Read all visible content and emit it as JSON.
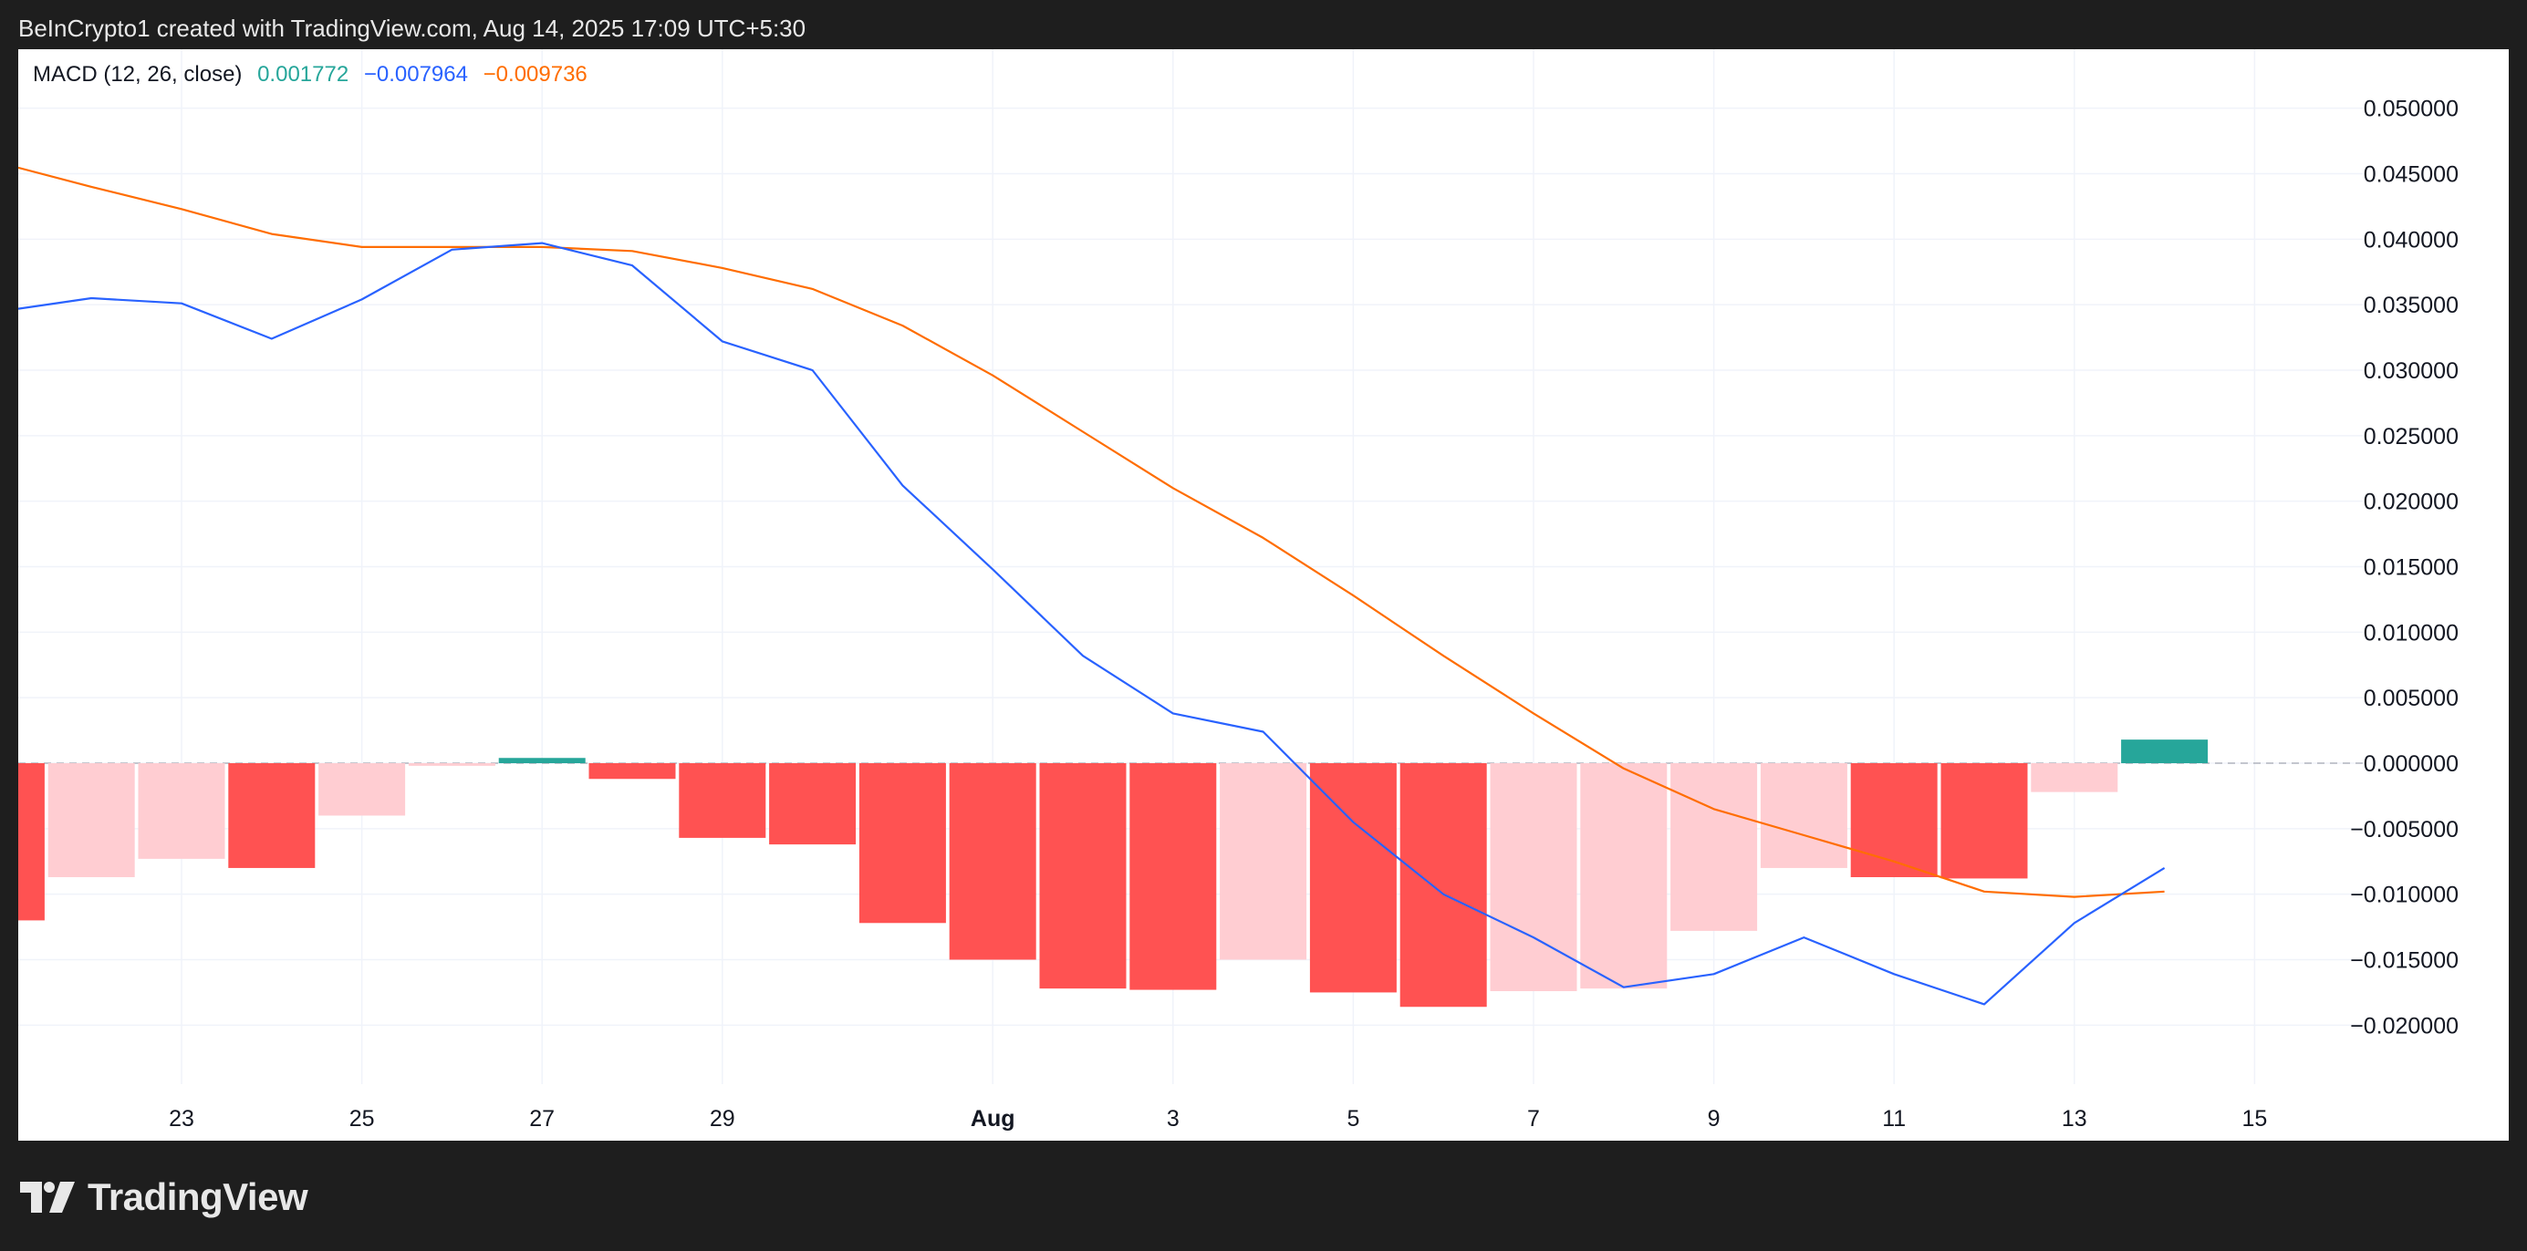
{
  "caption": "BeInCrypto1 created with TradingView.com, Aug 14, 2025 17:09 UTC+5:30",
  "brand": {
    "name": "TradingView"
  },
  "legend": {
    "indicator": "MACD (12, 26, close)",
    "histogram_value": "0.001772",
    "macd_value": "−0.007964",
    "signal_value": "−0.009736"
  },
  "colors": {
    "macd_line": "#2962ff",
    "signal_line": "#ff6d00",
    "hist_up_strong": "#26a69a",
    "hist_down_strong": "#ff5252",
    "hist_down_weak": "#ffcdd2"
  },
  "chart_data": {
    "type": "bar",
    "title": "",
    "x_ticks": [
      {
        "label": "23",
        "day": 23
      },
      {
        "label": "25",
        "day": 25
      },
      {
        "label": "27",
        "day": 27
      },
      {
        "label": "29",
        "day": 29
      },
      {
        "label": "Aug",
        "day": 32
      },
      {
        "label": "3",
        "day": 34
      },
      {
        "label": "5",
        "day": 36
      },
      {
        "label": "7",
        "day": 38
      },
      {
        "label": "9",
        "day": 40
      },
      {
        "label": "11",
        "day": 42
      },
      {
        "label": "13",
        "day": 44
      },
      {
        "label": "15",
        "day": 46
      }
    ],
    "y_ticks": [
      "0.050000",
      "0.045000",
      "0.040000",
      "0.035000",
      "0.030000",
      "0.025000",
      "0.020000",
      "0.015000",
      "0.010000",
      "0.005000",
      "0.000000",
      "−0.005000",
      "−0.010000",
      "−0.015000",
      "−0.020000"
    ],
    "ylim": [
      -0.0245,
      0.0545
    ],
    "dates": [
      "Jul 21",
      "Jul 22",
      "Jul 23",
      "Jul 24",
      "Jul 25",
      "Jul 26",
      "Jul 27",
      "Jul 28",
      "Jul 29",
      "Jul 30",
      "Jul 31",
      "Aug 1",
      "Aug 2",
      "Aug 3",
      "Aug 4",
      "Aug 5",
      "Aug 6",
      "Aug 7",
      "Aug 8",
      "Aug 9",
      "Aug 10",
      "Aug 11",
      "Aug 12",
      "Aug 13",
      "Aug 14"
    ],
    "series": [
      {
        "name": "MACD",
        "kind": "line",
        "values": [
          0.0345,
          0.0355,
          0.0351,
          0.0324,
          0.0354,
          0.0392,
          0.0397,
          0.038,
          0.0322,
          0.03,
          0.0212,
          0.0148,
          0.0082,
          0.0038,
          0.0024,
          -0.0045,
          -0.01,
          -0.0133,
          -0.0171,
          -0.0161,
          -0.0133,
          -0.0161,
          -0.0184,
          -0.0122,
          -0.008
        ]
      },
      {
        "name": "Signal",
        "kind": "line",
        "values": [
          0.0458,
          0.044,
          0.0423,
          0.0404,
          0.0394,
          0.0394,
          0.0394,
          0.0391,
          0.0378,
          0.0362,
          0.0334,
          0.0296,
          0.0253,
          0.021,
          0.0172,
          0.0128,
          0.0082,
          0.0038,
          -0.0004,
          -0.0035,
          -0.0055,
          -0.0075,
          -0.0098,
          -0.0102,
          -0.0098
        ]
      },
      {
        "name": "Histogram",
        "kind": "bar",
        "values": [
          -0.012,
          -0.0087,
          -0.0073,
          -0.008,
          -0.004,
          -0.0002,
          0.0004,
          -0.0012,
          -0.0057,
          -0.0062,
          -0.0122,
          -0.015,
          -0.0172,
          -0.0173,
          -0.015,
          -0.0175,
          -0.0186,
          -0.0174,
          -0.0172,
          -0.0128,
          -0.008,
          -0.0087,
          -0.0088,
          -0.0022,
          0.0018
        ],
        "shades": [
          "strong",
          "weak",
          "weak",
          "strong",
          "weak",
          "weak",
          "strong",
          "strong",
          "strong",
          "strong",
          "strong",
          "strong",
          "strong",
          "strong",
          "weak",
          "strong",
          "strong",
          "weak",
          "weak",
          "weak",
          "weak",
          "strong",
          "strong",
          "weak",
          "strong"
        ]
      }
    ],
    "grid": true,
    "legend_position": "top-left"
  }
}
